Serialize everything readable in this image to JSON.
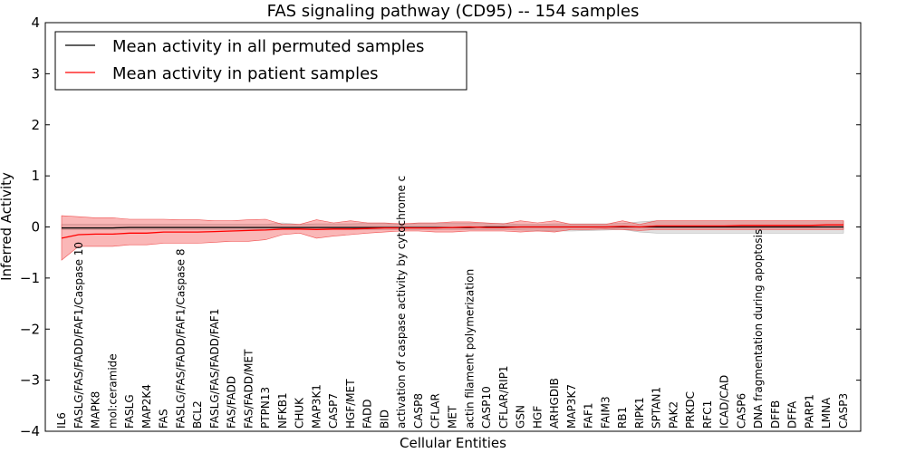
{
  "chart_data": {
    "type": "line",
    "title": "FAS signaling pathway (CD95) -- 154 samples",
    "xlabel": "Cellular Entities",
    "ylabel": "Inferred Activity",
    "ylim": [
      -4,
      4
    ],
    "yticks": [
      -4,
      -3,
      -2,
      -1,
      0,
      1,
      2,
      3,
      4
    ],
    "ytick_labels": [
      "−4",
      "−3",
      "−2",
      "−1",
      "0",
      "1",
      "2",
      "3",
      "4"
    ],
    "legend_position": "top-left",
    "categories": [
      "IL6",
      "FASLG/FAS/FADD/FAF1/Caspase 10",
      "MAPK8",
      "mol:ceramide",
      "FASLG",
      "MAP2K4",
      "FAS",
      "FASLG/FAS/FADD/FAF1/Caspase 8",
      "BCL2",
      "FASLG/FAS/FADD/FAF1",
      "FAS/FADD",
      "FAS/FADD/MET",
      "PTPN13",
      "NFKB1",
      "CHUK",
      "MAP3K1",
      "CASP7",
      "HGF/MET",
      "FADD",
      "BID",
      "activation of caspase activity by cytochrome c",
      "CASP8",
      "CFLAR",
      "MET",
      "actin filament polymerization",
      "CASP10",
      "CFLAR/RIP1",
      "GSN",
      "HGF",
      "ARHGDIB",
      "MAP3K7",
      "FAF1",
      "FAIM3",
      "RB1",
      "RIPK1",
      "SPTAN1",
      "PAK2",
      "PRKDC",
      "RFC1",
      "ICAD/CAD",
      "CASP6",
      "DNA fragmentation during apoptosis",
      "DFFB",
      "DFFA",
      "PARP1",
      "LMNA",
      "CASP3"
    ],
    "series": [
      {
        "name": "Mean activity in all permuted samples",
        "color": "#000000",
        "mean": [
          -0.02,
          -0.02,
          -0.02,
          -0.02,
          -0.01,
          -0.01,
          -0.01,
          -0.01,
          -0.01,
          -0.01,
          -0.01,
          -0.01,
          -0.01,
          -0.01,
          -0.01,
          -0.01,
          -0.01,
          -0.01,
          -0.01,
          -0.01,
          -0.01,
          -0.01,
          -0.01,
          -0.01,
          -0.01,
          0.0,
          0.0,
          0.0,
          0.0,
          0.0,
          0.0,
          0.0,
          0.0,
          0.0,
          0.0,
          0.0,
          0.0,
          0.0,
          0.0,
          0.0,
          0.0,
          0.0,
          0.0,
          0.0,
          0.0,
          0.0,
          0.0
        ],
        "lower": [
          -0.05,
          -0.05,
          -0.05,
          -0.05,
          -0.05,
          -0.05,
          -0.05,
          -0.05,
          -0.05,
          -0.05,
          -0.05,
          -0.05,
          -0.05,
          -0.05,
          -0.05,
          -0.05,
          -0.05,
          -0.05,
          -0.05,
          -0.05,
          -0.05,
          -0.05,
          -0.05,
          -0.05,
          -0.05,
          -0.05,
          -0.05,
          -0.06,
          -0.07,
          -0.08,
          -0.08,
          -0.07,
          -0.06,
          -0.05,
          -0.1,
          -0.12,
          -0.12,
          -0.12,
          -0.12,
          -0.12,
          -0.12,
          -0.12,
          -0.12,
          -0.12,
          -0.12,
          -0.12,
          -0.12
        ],
        "upper": [
          0.05,
          0.05,
          0.05,
          0.05,
          0.05,
          0.05,
          0.05,
          0.05,
          0.05,
          0.05,
          0.05,
          0.05,
          0.05,
          0.08,
          0.05,
          0.06,
          0.06,
          0.06,
          0.07,
          0.07,
          0.05,
          0.07,
          0.07,
          0.07,
          0.07,
          0.07,
          0.07,
          0.05,
          0.05,
          0.06,
          0.06,
          0.06,
          0.06,
          0.07,
          0.1,
          0.12,
          0.12,
          0.12,
          0.12,
          0.12,
          0.12,
          0.12,
          0.12,
          0.12,
          0.12,
          0.12,
          0.12
        ]
      },
      {
        "name": "Mean activity in patient samples",
        "color": "#ff0000",
        "mean": [
          -0.22,
          -0.15,
          -0.14,
          -0.14,
          -0.12,
          -0.12,
          -0.1,
          -0.1,
          -0.1,
          -0.09,
          -0.08,
          -0.07,
          -0.06,
          -0.04,
          -0.04,
          -0.05,
          -0.04,
          -0.04,
          -0.03,
          -0.02,
          -0.02,
          -0.02,
          -0.02,
          -0.01,
          0.0,
          -0.01,
          -0.01,
          0.0,
          0.0,
          0.0,
          0.0,
          0.0,
          0.0,
          0.01,
          0.0,
          0.02,
          0.02,
          0.02,
          0.02,
          0.02,
          0.03,
          0.03,
          0.03,
          0.03,
          0.03,
          0.04,
          0.04
        ],
        "lower": [
          -0.65,
          -0.38,
          -0.38,
          -0.38,
          -0.35,
          -0.35,
          -0.32,
          -0.32,
          -0.32,
          -0.3,
          -0.28,
          -0.28,
          -0.25,
          -0.15,
          -0.12,
          -0.22,
          -0.18,
          -0.15,
          -0.12,
          -0.1,
          -0.08,
          -0.08,
          -0.1,
          -0.1,
          -0.08,
          -0.08,
          -0.08,
          -0.1,
          -0.08,
          -0.1,
          -0.05,
          -0.05,
          -0.04,
          -0.05,
          -0.07,
          -0.05,
          -0.05,
          -0.05,
          -0.05,
          -0.05,
          -0.05,
          -0.05,
          -0.05,
          -0.05,
          -0.05,
          -0.05,
          -0.05
        ],
        "upper": [
          0.22,
          0.2,
          0.18,
          0.18,
          0.15,
          0.15,
          0.15,
          0.14,
          0.14,
          0.12,
          0.12,
          0.14,
          0.15,
          0.05,
          0.05,
          0.14,
          0.08,
          0.12,
          0.08,
          0.08,
          0.06,
          0.08,
          0.08,
          0.1,
          0.1,
          0.08,
          0.06,
          0.12,
          0.08,
          0.12,
          0.05,
          0.05,
          0.05,
          0.12,
          0.05,
          0.12,
          0.12,
          0.12,
          0.12,
          0.12,
          0.12,
          0.12,
          0.12,
          0.12,
          0.12,
          0.12,
          0.12
        ]
      }
    ]
  }
}
